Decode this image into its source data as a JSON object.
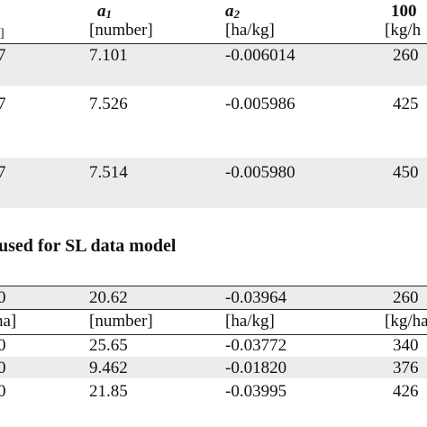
{
  "table1": {
    "header": {
      "col_a1": "a",
      "col_a1_sub": "1",
      "col_a2": "a",
      "col_a2_sub": "2",
      "col_last": "100",
      "units_first": "]",
      "units_a1": "[number]",
      "units_a2": "[ha/kg]",
      "units_last": "[kg/h"
    },
    "rows": [
      {
        "first": "7",
        "a1": "7.101",
        "a2": "-0.006014",
        "last": "260"
      },
      {
        "first": "7",
        "a1": "7.526",
        "a2": "-0.005986",
        "last": "425"
      },
      {
        "first": "7",
        "a1": "7.514",
        "a2": "-0.005980",
        "last": "450"
      }
    ]
  },
  "section_title": "used for SL data model",
  "table2": {
    "row0": {
      "first": "0",
      "a1": "20.62",
      "a2": "-0.03964",
      "last": "260"
    },
    "units": {
      "first": "ha]",
      "a1": "[number]",
      "a2": "[ha/kg]",
      "last": "[kg/ha"
    },
    "rows": [
      {
        "first": "0",
        "a1": "25.65",
        "a2": "-0.03772",
        "last": "340"
      },
      {
        "first": "0",
        "a1": "9.462",
        "a2": "-0.01820",
        "last": "376"
      },
      {
        "first": "0",
        "a1": "21.85",
        "a2": "-0.03995",
        "last": "426"
      }
    ]
  }
}
